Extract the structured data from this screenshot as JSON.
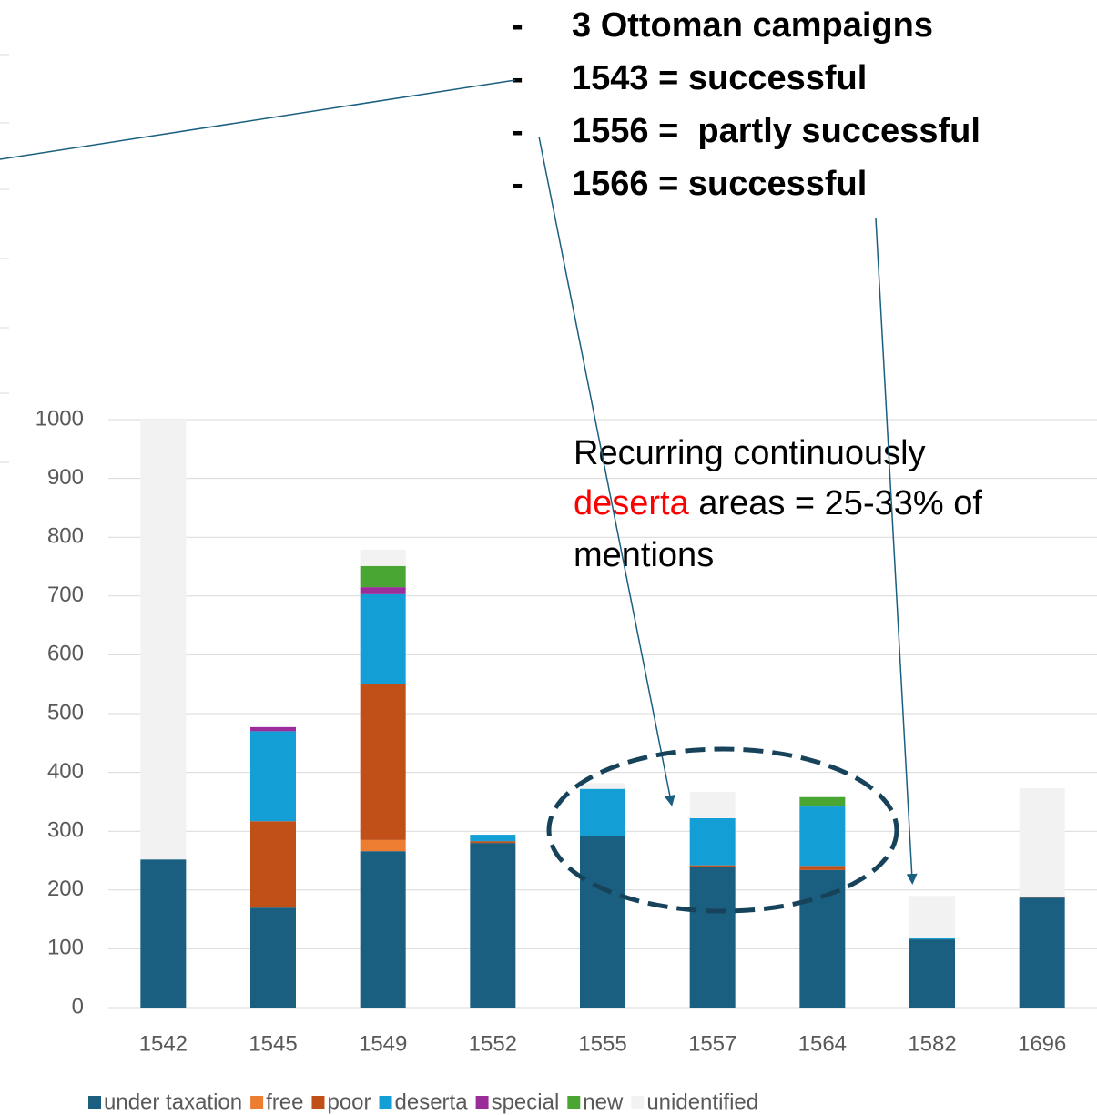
{
  "chart_data": {
    "type": "stacked_bar",
    "categories": [
      "1542",
      "1545",
      "1549",
      "1552",
      "1555",
      "1557",
      "1564",
      "1582",
      "1696"
    ],
    "series": [
      {
        "name": "under taxation",
        "color": "#1a5f80",
        "values": [
          252,
          170,
          266,
          280,
          292,
          240,
          234,
          116,
          187
        ]
      },
      {
        "name": "free",
        "color": "#ed7d31",
        "values": [
          0,
          0,
          19,
          0,
          0,
          0,
          0,
          0,
          0
        ]
      },
      {
        "name": "poor",
        "color": "#c05018",
        "values": [
          0,
          147,
          266,
          3,
          0,
          2,
          7,
          0,
          2
        ]
      },
      {
        "name": "deserta",
        "color": "#139fd6",
        "values": [
          0,
          153,
          152,
          11,
          80,
          80,
          101,
          2,
          0
        ]
      },
      {
        "name": "special",
        "color": "#9b2d9b",
        "values": [
          0,
          7,
          12,
          0,
          0,
          0,
          0,
          0,
          0
        ]
      },
      {
        "name": "new",
        "color": "#4aa632",
        "values": [
          0,
          0,
          36,
          0,
          0,
          0,
          16,
          0,
          0
        ]
      },
      {
        "name": "unidentified",
        "color": "#f2f2f2",
        "values": [
          748,
          0,
          28,
          0,
          10,
          45,
          0,
          72,
          184
        ]
      }
    ],
    "ylim": [
      0,
      1000
    ],
    "yticks": [
      0,
      100,
      200,
      300,
      400,
      500,
      600,
      700,
      800,
      900,
      1000
    ],
    "grid": true,
    "legend": "bottom",
    "annotations": {
      "bullet": "-",
      "items": [
        "3 Ottoman campaigns",
        "1543 = successful",
        "1556 =  partly successful",
        "1566 = successful"
      ],
      "note_line1": "Recurring continuously",
      "note_highlight": "deserta",
      "note_line2_rest": "areas = 25-33% of",
      "note_line3": "mentions"
    }
  }
}
